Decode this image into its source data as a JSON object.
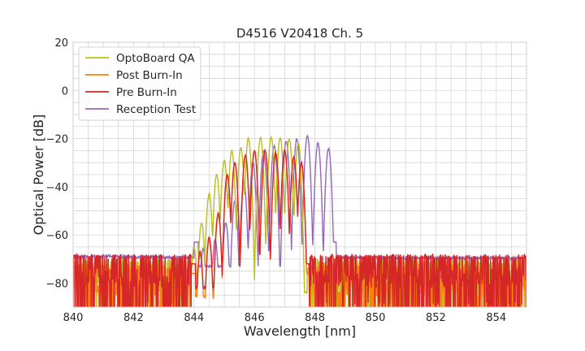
{
  "chart_data": {
    "type": "line",
    "title": "D4516 V20418 Ch. 5",
    "xlabel": "Wavelength [nm]",
    "ylabel": "Optical Power [dB]",
    "xlim": [
      840,
      855
    ],
    "ylim": [
      -90,
      20
    ],
    "xticks": [
      840,
      842,
      844,
      846,
      848,
      850,
      852,
      854
    ],
    "yticks": [
      20,
      0,
      -20,
      -40,
      -60,
      -80
    ],
    "xtick_labels": [
      "840",
      "842",
      "844",
      "846",
      "848",
      "850",
      "852",
      "854"
    ],
    "ytick_labels": [
      "20",
      "0",
      "−20",
      "−40",
      "−60",
      "−80"
    ],
    "grid": true,
    "legend_position": "top-left",
    "series": [
      {
        "name": "OptoBoard QA",
        "color": "#bcbd22",
        "noise_floor": -80,
        "band_start": 843.9,
        "band_end": 847.9,
        "peaks": [
          {
            "x": 844.0,
            "y": -65
          },
          {
            "x": 844.25,
            "y": -55
          },
          {
            "x": 844.5,
            "y": -43
          },
          {
            "x": 844.75,
            "y": -35
          },
          {
            "x": 845.0,
            "y": -29
          },
          {
            "x": 845.25,
            "y": -25
          },
          {
            "x": 845.55,
            "y": -24
          },
          {
            "x": 845.8,
            "y": -20
          },
          {
            "x": 846.2,
            "y": -19.5
          },
          {
            "x": 846.55,
            "y": -19.5
          },
          {
            "x": 846.85,
            "y": -19.5
          },
          {
            "x": 847.15,
            "y": -20
          },
          {
            "x": 847.45,
            "y": -22
          }
        ]
      },
      {
        "name": "Post Burn-In",
        "color": "#ff7f0e",
        "noise_floor": -82,
        "band_start": 843.9,
        "band_end": 847.8,
        "peaks": [
          {
            "x": 844.2,
            "y": -68
          },
          {
            "x": 844.5,
            "y": -62
          },
          {
            "x": 844.8,
            "y": -52
          },
          {
            "x": 845.1,
            "y": -36
          },
          {
            "x": 845.35,
            "y": -30
          },
          {
            "x": 845.7,
            "y": -27
          },
          {
            "x": 846.0,
            "y": -25
          },
          {
            "x": 846.35,
            "y": -25
          },
          {
            "x": 846.7,
            "y": -26
          },
          {
            "x": 847.0,
            "y": -25
          },
          {
            "x": 847.3,
            "y": -28
          },
          {
            "x": 847.55,
            "y": -31
          }
        ]
      },
      {
        "name": "Pre Burn-In",
        "color": "#d62728",
        "noise_floor": -78,
        "band_start": 843.9,
        "band_end": 847.8,
        "peaks": [
          {
            "x": 844.2,
            "y": -67
          },
          {
            "x": 844.5,
            "y": -61
          },
          {
            "x": 844.8,
            "y": -51
          },
          {
            "x": 845.1,
            "y": -35
          },
          {
            "x": 845.35,
            "y": -30
          },
          {
            "x": 845.7,
            "y": -27
          },
          {
            "x": 846.0,
            "y": -25
          },
          {
            "x": 846.35,
            "y": -25
          },
          {
            "x": 846.7,
            "y": -26
          },
          {
            "x": 847.0,
            "y": -25
          },
          {
            "x": 847.3,
            "y": -28
          },
          {
            "x": 847.55,
            "y": -30
          }
        ]
      },
      {
        "name": "Reception Test",
        "color": "#9467bd",
        "noise_floor": -69,
        "band_start": 844.0,
        "band_end": 848.7,
        "peaks": [
          {
            "x": 844.3,
            "y": -66
          },
          {
            "x": 844.7,
            "y": -62
          },
          {
            "x": 845.05,
            "y": -55
          },
          {
            "x": 845.35,
            "y": -46
          },
          {
            "x": 845.65,
            "y": -38
          },
          {
            "x": 845.95,
            "y": -30
          },
          {
            "x": 846.3,
            "y": -25
          },
          {
            "x": 846.65,
            "y": -23
          },
          {
            "x": 847.05,
            "y": -21
          },
          {
            "x": 847.4,
            "y": -20
          },
          {
            "x": 847.75,
            "y": -19
          },
          {
            "x": 848.1,
            "y": -22
          },
          {
            "x": 848.45,
            "y": -24
          }
        ]
      }
    ]
  }
}
